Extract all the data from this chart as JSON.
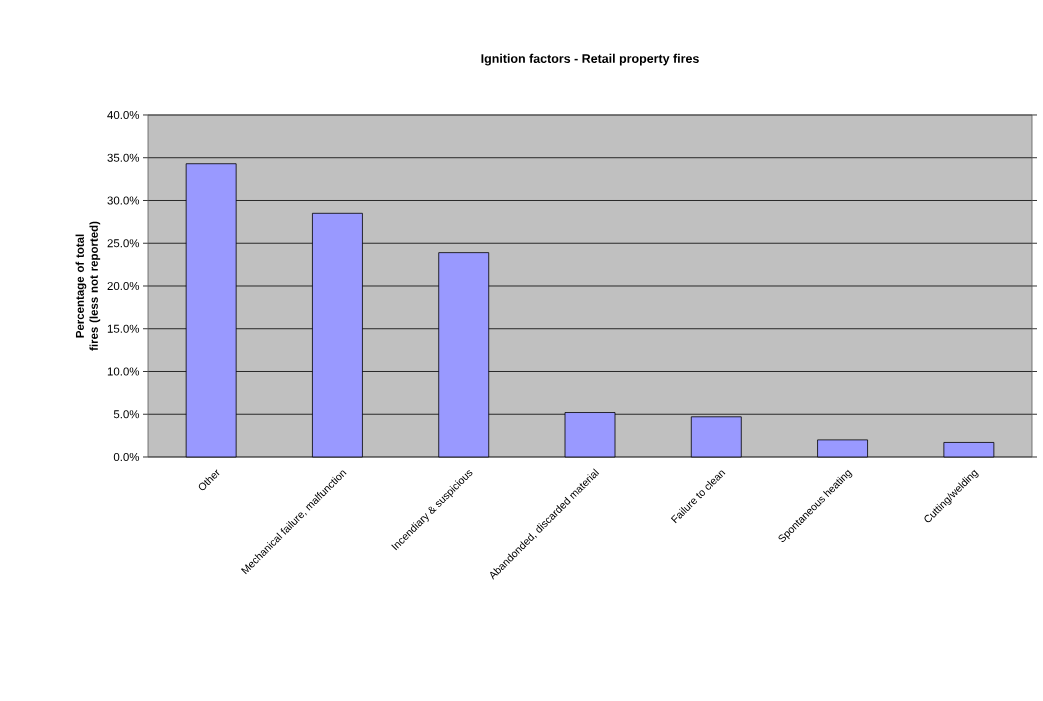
{
  "chart_data": {
    "type": "bar",
    "title": "Ignition factors - Retail property fires",
    "ylabel": "Percentage of total fires (less not reported)",
    "categories": [
      "Other",
      "Mechanical failure, malfunction",
      "Incendiary & suspicious",
      "Abandonded, discarded material",
      "Failure to clean",
      "Spontaneous heating",
      "Cutting/welding"
    ],
    "values": [
      34.3,
      28.5,
      23.9,
      5.2,
      4.7,
      2.0,
      1.7
    ],
    "color": "#9999ff",
    "ylim": [
      0,
      40
    ],
    "yticks": [
      {
        "value": 0,
        "label": "0.0%"
      },
      {
        "value": 5,
        "label": "5.0%"
      },
      {
        "value": 10,
        "label": "10.0%"
      },
      {
        "value": 15,
        "label": "15.0%"
      },
      {
        "value": 20,
        "label": "20.0%"
      },
      {
        "value": 25,
        "label": "25.0%"
      },
      {
        "value": 30,
        "label": "30.0%"
      },
      {
        "value": 35,
        "label": "35.0%"
      },
      {
        "value": 40,
        "label": "40.0%"
      }
    ],
    "grid": "y"
  }
}
